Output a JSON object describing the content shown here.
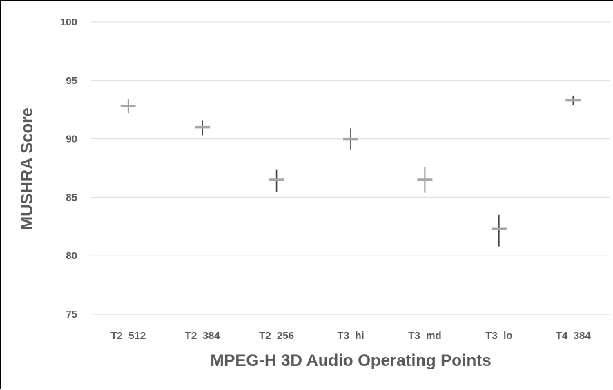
{
  "chart_data": {
    "type": "scatter",
    "title": "",
    "xlabel": "MPEG-H 3D Audio Operating Points",
    "ylabel": "MUSHRA Score",
    "categories": [
      "T2_512",
      "T2_384",
      "T2_256",
      "T3_hi",
      "T3_md",
      "T3_lo",
      "T4_384"
    ],
    "values": [
      92.8,
      91.0,
      86.5,
      90.0,
      86.5,
      82.3,
      93.3
    ],
    "ci_low": [
      92.2,
      90.3,
      85.5,
      89.1,
      85.4,
      80.8,
      92.9
    ],
    "ci_high": [
      93.4,
      91.6,
      87.4,
      90.9,
      87.6,
      83.5,
      93.7
    ],
    "ylim": [
      75,
      100
    ],
    "yticks": [
      75,
      80,
      85,
      90,
      95,
      100
    ],
    "grid": true,
    "legend": "none",
    "colors": {
      "grid": "#d9d9d9",
      "marker": "#a6a6a6",
      "error_bar": "#404040",
      "text": "#595959"
    }
  }
}
